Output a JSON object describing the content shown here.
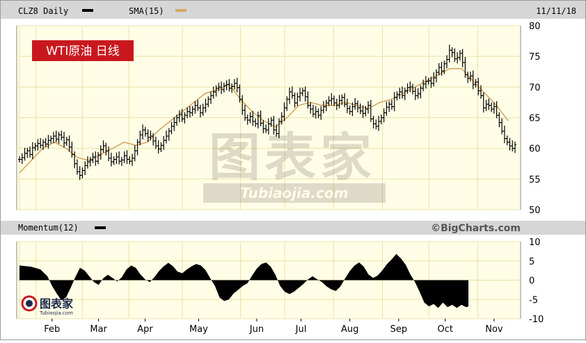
{
  "header": {
    "symbol_label": "CLZ8 Daily",
    "sma_label": "SMA(15)",
    "date": "11/11/18"
  },
  "badge": {
    "text": "WTI原油 日线"
  },
  "watermark": {
    "main": "图表家",
    "sub": "Tubiaojia.com"
  },
  "logo": {
    "text": "图表家",
    "sub": "Tubiaojia.com"
  },
  "momentum_header": {
    "label": "Momentum(12)",
    "credit": "©BigCharts.com"
  },
  "colors": {
    "price_bar": "#000000",
    "sma_line": "#d4a862",
    "panel_bg": "#fffde6",
    "grid": "#e8e3a8",
    "header_bg": "#d6d6d6",
    "badge_bg": "#c8181e",
    "momentum_fill": "#000000"
  },
  "chart_data": [
    {
      "type": "ohlc",
      "title": "CLZ8 Daily",
      "series": [
        {
          "name": "CLZ8 Daily",
          "kind": "price"
        },
        {
          "name": "SMA(15)",
          "kind": "line",
          "points": [
            [
              0,
              56
            ],
            [
              5,
              58
            ],
            [
              10,
              60
            ],
            [
              15,
              61
            ],
            [
              20,
              60
            ],
            [
              25,
              58.5
            ],
            [
              30,
              58
            ],
            [
              35,
              59
            ],
            [
              40,
              60
            ],
            [
              45,
              61
            ],
            [
              50,
              60.5
            ],
            [
              55,
              61
            ],
            [
              60,
              63
            ],
            [
              65,
              64.5
            ],
            [
              70,
              66
            ],
            [
              75,
              67.5
            ],
            [
              80,
              69
            ],
            [
              85,
              69.5
            ],
            [
              90,
              70.5
            ],
            [
              95,
              68
            ],
            [
              100,
              66
            ],
            [
              105,
              64.5
            ],
            [
              110,
              63.5
            ],
            [
              115,
              65
            ],
            [
              120,
              67
            ],
            [
              125,
              67.5
            ],
            [
              130,
              67
            ],
            [
              135,
              67
            ],
            [
              140,
              67.5
            ],
            [
              145,
              67
            ],
            [
              150,
              66.5
            ],
            [
              155,
              67.5
            ],
            [
              160,
              68
            ],
            [
              165,
              69
            ],
            [
              170,
              70
            ],
            [
              175,
              71
            ],
            [
              180,
              72
            ],
            [
              185,
              73
            ],
            [
              190,
              73
            ],
            [
              195,
              71
            ],
            [
              200,
              69
            ],
            [
              205,
              67
            ],
            [
              210,
              64.5
            ]
          ]
        }
      ],
      "ohlc_closes": [
        58.2,
        58.5,
        59.2,
        59.6,
        59.0,
        60.1,
        60.4,
        60.8,
        60.5,
        61.0,
        60.7,
        61.3,
        61.6,
        62.0,
        61.5,
        62.2,
        61.8,
        60.9,
        61.4,
        60.2,
        59.0,
        57.5,
        56.2,
        55.6,
        56.4,
        57.2,
        57.8,
        58.1,
        58.6,
        57.9,
        58.9,
        59.8,
        60.4,
        59.6,
        58.4,
        57.8,
        58.2,
        58.6,
        57.9,
        58.1,
        58.8,
        58.2,
        57.9,
        58.4,
        59.6,
        61.0,
        62.2,
        63.0,
        62.4,
        61.8,
        62.0,
        61.2,
        60.4,
        59.9,
        60.5,
        61.3,
        62.0,
        62.8,
        63.6,
        64.2,
        65.0,
        65.5,
        64.8,
        65.4,
        66.0,
        65.8,
        66.4,
        67.0,
        66.6,
        65.8,
        66.6,
        67.2,
        68.0,
        68.6,
        69.2,
        69.8,
        70.0,
        69.6,
        70.2,
        70.4,
        69.8,
        70.1,
        70.6,
        69.9,
        68.0,
        66.2,
        65.0,
        64.6,
        65.2,
        64.4,
        64.0,
        65.3,
        64.1,
        63.2,
        63.0,
        64.0,
        64.6,
        63.0,
        62.4,
        64.4,
        65.2,
        66.6,
        68.0,
        69.2,
        68.6,
        67.4,
        68.4,
        69.0,
        69.4,
        68.4,
        67.0,
        66.4,
        65.6,
        66.0,
        65.4,
        66.2,
        66.8,
        67.4,
        67.8,
        68.1,
        67.4,
        67.0,
        67.8,
        68.3,
        67.2,
        66.5,
        66.0,
        66.8,
        67.3,
        66.6,
        66.1,
        65.7,
        66.4,
        67.0,
        64.8,
        64.0,
        63.6,
        64.4,
        65.0,
        65.8,
        66.7,
        67.2,
        66.8,
        68.3,
        68.8,
        69.2,
        68.6,
        69.4,
        69.9,
        70.0,
        69.3,
        68.6,
        68.9,
        69.8,
        70.5,
        70.9,
        71.0,
        70.6,
        71.5,
        72.4,
        73.2,
        72.6,
        73.8,
        74.5,
        76.0,
        75.6,
        74.6,
        74.8,
        75.5,
        74.0,
        72.0,
        71.4,
        71.8,
        70.4,
        70.8,
        69.4,
        68.6,
        66.6,
        67.2,
        67.0,
        66.4,
        66.8,
        65.4,
        64.2,
        62.8,
        61.6,
        61.0,
        60.4,
        60.0,
        60.6
      ],
      "x_labels": [
        "Feb",
        "Mar",
        "Apr",
        "May",
        "Jun",
        "Jul",
        "Aug",
        "Sep",
        "Oct",
        "Nov"
      ],
      "x_label_positions": [
        14,
        34,
        54,
        77,
        102,
        121,
        142,
        163,
        183,
        204
      ],
      "x_days": 214,
      "ylim": [
        50,
        80
      ],
      "yticks": [
        50,
        55,
        60,
        65,
        70,
        75,
        80
      ],
      "grid": true
    },
    {
      "type": "area",
      "title": "Momentum(12)",
      "ylim": [
        -10,
        10
      ],
      "yticks": [
        -10,
        -5,
        0,
        5,
        10
      ],
      "values_sampled": [
        [
          0,
          3.8
        ],
        [
          5,
          3.5
        ],
        [
          9,
          2.8
        ],
        [
          12,
          1.0
        ],
        [
          14,
          -1.5
        ],
        [
          16,
          -3.5
        ],
        [
          18,
          -5.2
        ],
        [
          20,
          -4.5
        ],
        [
          22,
          -2.0
        ],
        [
          24,
          0.8
        ],
        [
          26,
          3.2
        ],
        [
          28,
          2.5
        ],
        [
          30,
          1.0
        ],
        [
          32,
          -0.5
        ],
        [
          34,
          -1.2
        ],
        [
          36,
          0.5
        ],
        [
          38,
          1.4
        ],
        [
          40,
          0.6
        ],
        [
          42,
          -0.3
        ],
        [
          44,
          0.8
        ],
        [
          46,
          2.8
        ],
        [
          48,
          3.8
        ],
        [
          50,
          3.2
        ],
        [
          52,
          1.5
        ],
        [
          54,
          0.2
        ],
        [
          56,
          -0.5
        ],
        [
          58,
          0.8
        ],
        [
          60,
          2.4
        ],
        [
          62,
          3.6
        ],
        [
          64,
          4.5
        ],
        [
          66,
          3.6
        ],
        [
          68,
          2.2
        ],
        [
          70,
          1.8
        ],
        [
          72,
          2.8
        ],
        [
          74,
          3.6
        ],
        [
          76,
          4.2
        ],
        [
          78,
          3.8
        ],
        [
          80,
          2.6
        ],
        [
          82,
          0.5
        ],
        [
          84,
          -1.5
        ],
        [
          86,
          -4.5
        ],
        [
          88,
          -5.4
        ],
        [
          90,
          -5.0
        ],
        [
          92,
          -3.5
        ],
        [
          94,
          -2.5
        ],
        [
          96,
          -1.5
        ],
        [
          98,
          -0.8
        ],
        [
          100,
          1.2
        ],
        [
          102,
          3.0
        ],
        [
          104,
          4.2
        ],
        [
          106,
          4.6
        ],
        [
          108,
          3.5
        ],
        [
          110,
          1.4
        ],
        [
          112,
          -1.5
        ],
        [
          114,
          -3.0
        ],
        [
          116,
          -3.6
        ],
        [
          118,
          -3.0
        ],
        [
          120,
          -2.0
        ],
        [
          122,
          -1.0
        ],
        [
          124,
          0.2
        ],
        [
          126,
          1.0
        ],
        [
          128,
          0.2
        ],
        [
          130,
          -0.5
        ],
        [
          132,
          -1.6
        ],
        [
          134,
          -2.4
        ],
        [
          136,
          -2.8
        ],
        [
          138,
          -1.6
        ],
        [
          140,
          0.5
        ],
        [
          142,
          2.4
        ],
        [
          144,
          3.8
        ],
        [
          146,
          4.6
        ],
        [
          148,
          3.5
        ],
        [
          150,
          1.5
        ],
        [
          152,
          0.6
        ],
        [
          154,
          1.2
        ],
        [
          156,
          2.6
        ],
        [
          158,
          4.2
        ],
        [
          160,
          5.4
        ],
        [
          162,
          6.8
        ],
        [
          164,
          5.6
        ],
        [
          166,
          4.0
        ],
        [
          168,
          1.5
        ],
        [
          170,
          -0.5
        ],
        [
          172,
          -3.0
        ],
        [
          174,
          -5.8
        ],
        [
          176,
          -6.8
        ],
        [
          178,
          -6.2
        ],
        [
          180,
          -7.2
        ],
        [
          182,
          -5.8
        ],
        [
          184,
          -7.0
        ],
        [
          186,
          -6.4
        ],
        [
          188,
          -7.2
        ],
        [
          190,
          -6.4
        ],
        [
          192,
          -7.0
        ],
        [
          193,
          -6.8
        ]
      ],
      "grid": true
    }
  ]
}
